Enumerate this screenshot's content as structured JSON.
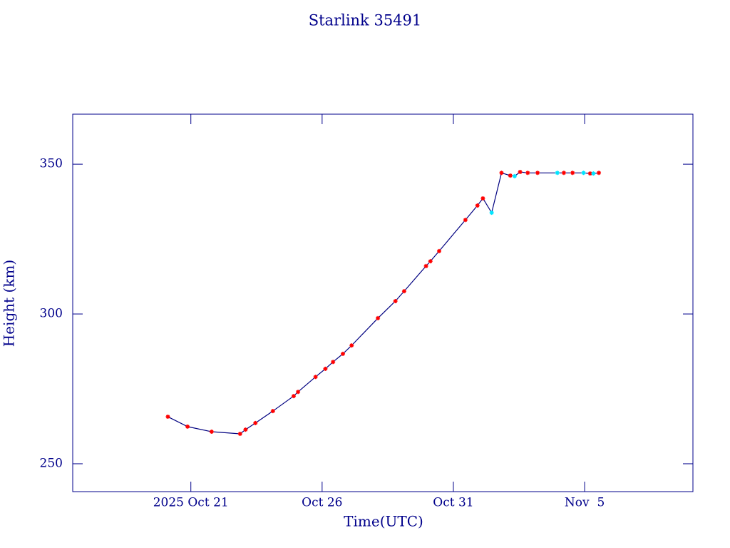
{
  "chart_data": {
    "type": "line",
    "title": "Starlink 35491",
    "x_label": "Time(UTC)",
    "y_label": "Height (km)",
    "x": [
      "2025-10-20T03:00Z",
      "2025-10-20T21:00Z",
      "2025-10-21T19:00Z",
      "2025-10-22T21:00Z",
      "2025-10-23T02:00Z",
      "2025-10-23T11:00Z",
      "2025-10-24T03:00Z",
      "2025-10-24T22:00Z",
      "2025-10-25T02:00Z",
      "2025-10-25T18:00Z",
      "2025-10-26T03:00Z",
      "2025-10-26T10:00Z",
      "2025-10-26T19:00Z",
      "2025-10-27T03:00Z",
      "2025-10-28T03:00Z",
      "2025-10-28T19:00Z",
      "2025-10-29T03:00Z",
      "2025-10-29T23:00Z",
      "2025-10-30T03:00Z",
      "2025-10-30T11:00Z",
      "2025-10-31T11:00Z",
      "2025-10-31T22:00Z",
      "2025-11-01T03:00Z",
      "2025-11-01T11:00Z",
      "2025-11-01T20:00Z",
      "2025-11-02T04:00Z",
      "2025-11-02T08:00Z",
      "2025-11-02T13:00Z",
      "2025-11-02T20:00Z",
      "2025-11-03T05:00Z",
      "2025-11-03T23:00Z",
      "2025-11-04T05:00Z",
      "2025-11-04T13:00Z",
      "2025-11-04T23:00Z",
      "2025-11-05T05:00Z",
      "2025-11-05T08:00Z",
      "2025-11-05T13:00Z"
    ],
    "series": [
      {
        "color": "#000080",
        "values": [
          265.7,
          262.4,
          260.7,
          260.0,
          261.4,
          263.6,
          267.6,
          272.6,
          274.0,
          279.0,
          281.7,
          284.0,
          286.7,
          289.5,
          298.6,
          304.3,
          307.6,
          316.0,
          317.6,
          321.0,
          331.4,
          336.2,
          338.6,
          333.8,
          347.1,
          346.2,
          346.0,
          347.4,
          347.1,
          347.1,
          347.1,
          347.1,
          347.1,
          347.1,
          346.9,
          346.9,
          347.1
        ],
        "marker_colors": [
          "#ff0000",
          "#ff0000",
          "#ff0000",
          "#ff0000",
          "#ff0000",
          "#ff0000",
          "#ff0000",
          "#ff0000",
          "#ff0000",
          "#ff0000",
          "#ff0000",
          "#ff0000",
          "#ff0000",
          "#ff0000",
          "#ff0000",
          "#ff0000",
          "#ff0000",
          "#ff0000",
          "#ff0000",
          "#ff0000",
          "#ff0000",
          "#ff0000",
          "#ff0000",
          "#00e5ff",
          "#ff0000",
          "#ff0000",
          "#00e5ff",
          "#ff0000",
          "#ff0000",
          "#ff0000",
          "#00e5ff",
          "#ff0000",
          "#ff0000",
          "#00e5ff",
          "#ff0000",
          "#00e5ff",
          "#ff0000"
        ]
      }
    ],
    "xlim": [
      "2025-10-16T12:00Z",
      "2025-11-09T03:00Z"
    ],
    "xticks": [
      {
        "value": "2025-10-21T00:00Z",
        "label": "2025 Oct 21"
      },
      {
        "value": "2025-10-26T00:00Z",
        "label": "Oct 26"
      },
      {
        "value": "2025-10-31T00:00Z",
        "label": "Oct 31"
      },
      {
        "value": "2025-11-05T00:00Z",
        "label": "Nov  5"
      }
    ],
    "ylim": [
      240.7,
      366.7
    ],
    "yticks": [
      250,
      300,
      350
    ],
    "axis_color": "#00008b"
  }
}
